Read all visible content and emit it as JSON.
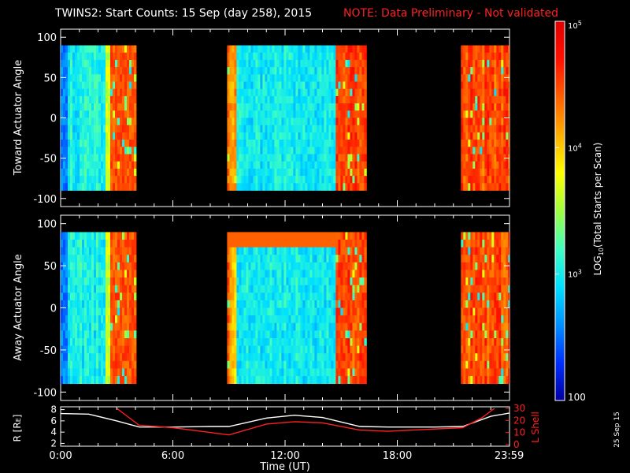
{
  "title": {
    "main": "TWINS2: Start Counts: 15 Sep (day 258), 2015",
    "note": "NOTE: Data Preliminary - Not validated",
    "note_color": "#ff2020"
  },
  "side_date": "25 Sep 15",
  "chart_data": [
    {
      "type": "heatmap",
      "name_label": "Toward Actuator Angle",
      "ylabel": "Toward Actuator Angle",
      "ylim": [
        -110,
        110
      ],
      "yticks": [
        100,
        50,
        0,
        -50,
        -100
      ],
      "angle_range": [
        -90,
        90
      ],
      "xlim_hours": [
        0,
        24
      ],
      "data_segments_hours": [
        [
          0.0,
          4.0
        ],
        [
          8.9,
          16.3
        ],
        [
          21.4,
          24.0
        ]
      ],
      "x_tick_labels": [
        "0:00",
        "6:00",
        "12:00",
        "18:00",
        "23:59"
      ]
    },
    {
      "type": "heatmap",
      "name_label": "Away Actuator Angle",
      "ylabel": "Away Actuator Angle",
      "ylim": [
        -110,
        110
      ],
      "yticks": [
        100,
        50,
        0,
        -50,
        -100
      ],
      "angle_range": [
        -90,
        90
      ],
      "xlim_hours": [
        0,
        24
      ],
      "data_segments_hours": [
        [
          0.0,
          4.0
        ],
        [
          8.9,
          16.3
        ],
        [
          21.4,
          24.0
        ]
      ],
      "x_tick_labels": [
        "0:00",
        "6:00",
        "12:00",
        "18:00",
        "23:59"
      ]
    },
    {
      "type": "line",
      "ylabel_left": "R [R",
      "ylabel_left_sub": "E",
      "ylabel_left_close": "]",
      "ylabel_right": "L Shell",
      "yticks_left": [
        8,
        6,
        4,
        2
      ],
      "ylim_left": [
        1.5,
        8.5
      ],
      "yticks_right": [
        30,
        20,
        10,
        0
      ],
      "ylim_right": [
        0,
        30
      ],
      "xlabel": "Time (UT)",
      "x_tick_labels": [
        "0:00",
        "6:00",
        "12:00",
        "18:00",
        "23:59"
      ],
      "x_tick_hours": [
        0,
        6,
        12,
        18,
        23.983
      ],
      "series": [
        {
          "name": "R",
          "color": "#ffffff",
          "axis": "left",
          "x": [
            0.0,
            1.5,
            3.0,
            4.2,
            6.0,
            8.0,
            9.0,
            11.0,
            12.5,
            14.0,
            16.0,
            17.5,
            20.0,
            21.5,
            23.0,
            24.0
          ],
          "y": [
            7.3,
            7.2,
            6.0,
            4.9,
            4.9,
            5.0,
            5.0,
            6.5,
            7.0,
            6.6,
            5.0,
            4.9,
            4.9,
            5.0,
            6.8,
            7.4
          ]
        },
        {
          "name": "L Shell",
          "color": "#ff2020",
          "axis": "right",
          "x": [
            3.0,
            4.2,
            6.0,
            9.0,
            11.0,
            12.5,
            14.0,
            16.0,
            17.5,
            21.5,
            22.5,
            23.2
          ],
          "y": [
            30,
            16,
            14,
            8,
            17,
            19,
            18,
            12,
            11,
            14,
            22,
            30
          ]
        }
      ]
    }
  ],
  "colorbar": {
    "label_main": "LOG",
    "label_sub": "10",
    "label_rest": "(Total Starts per Scan)",
    "ticks": [
      {
        "value": 100000,
        "base": "10",
        "exp": "5"
      },
      {
        "value": 10000,
        "base": "10",
        "exp": "4"
      },
      {
        "value": 1000,
        "base": "10",
        "exp": "3"
      },
      {
        "value": 100,
        "base": "100",
        "exp": ""
      }
    ],
    "range": [
      100,
      100000
    ],
    "colors": [
      "#0000a0",
      "#0030ff",
      "#0090ff",
      "#00e0ff",
      "#40ffc0",
      "#a0ff40",
      "#ffff00",
      "#ffb000",
      "#ff6000",
      "#ff1000",
      "#e00000"
    ]
  }
}
